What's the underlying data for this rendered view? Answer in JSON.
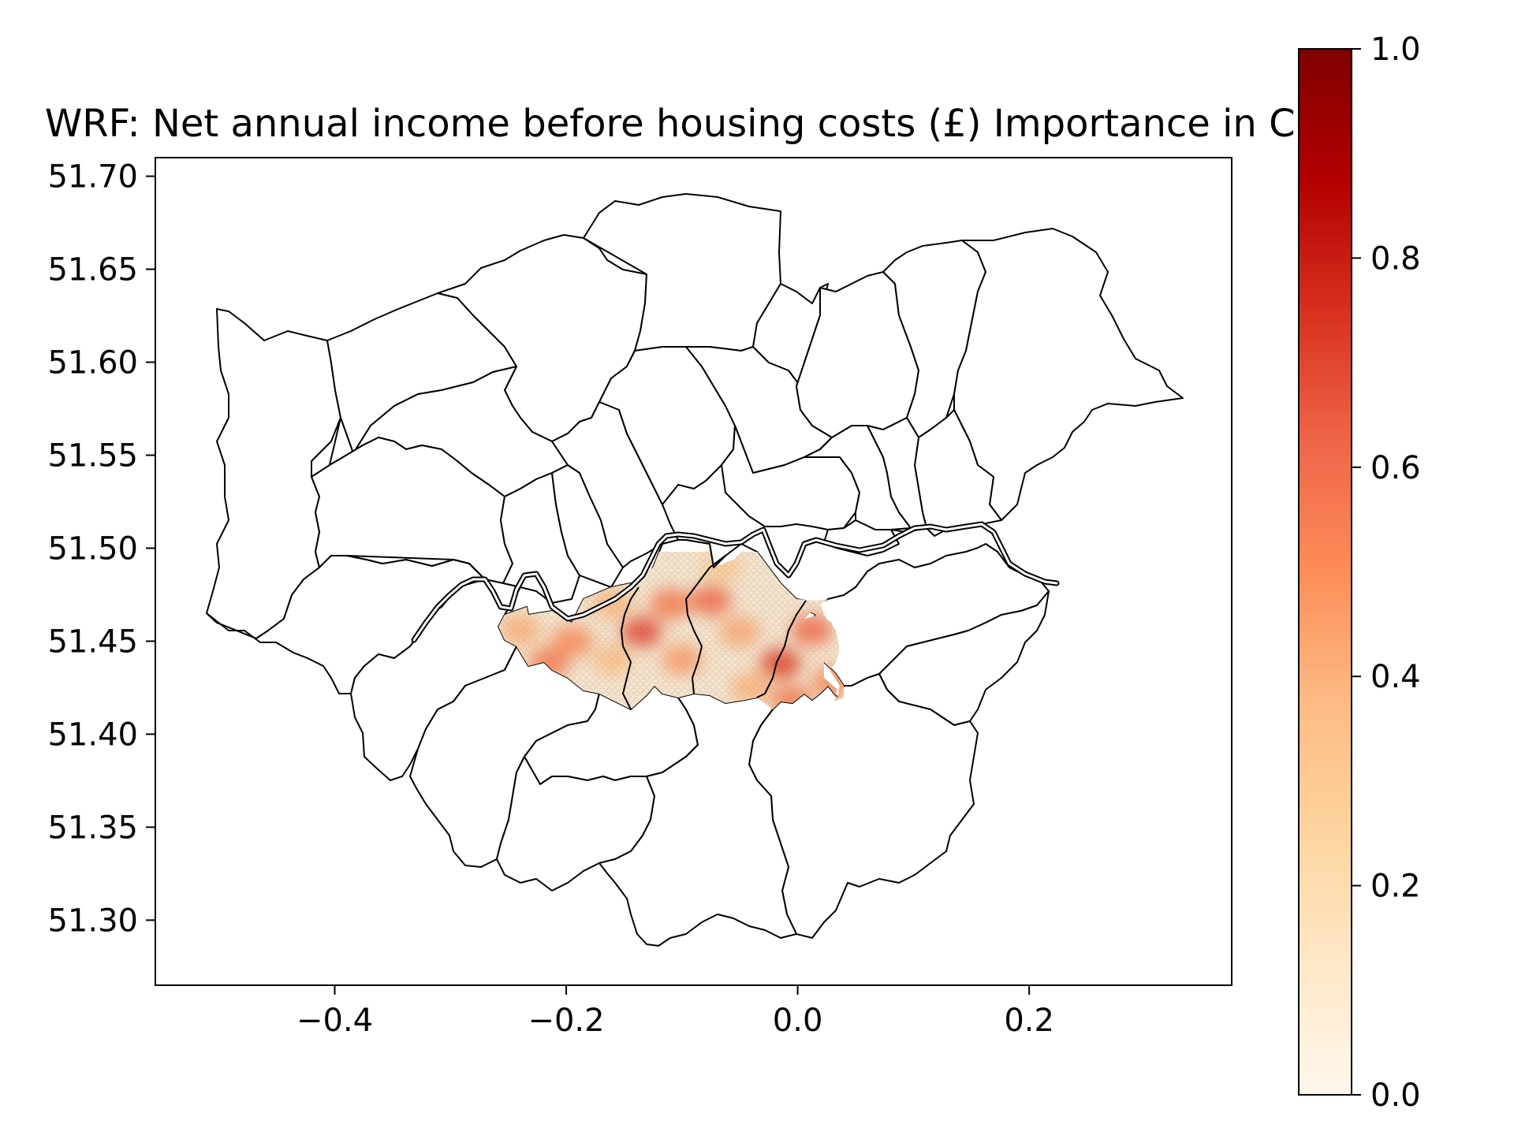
{
  "title": "WRF: Net annual income before housing costs (£) Importance in  City",
  "chart_data": {
    "type": "heatmap",
    "title": "WRF: Net annual income before housing costs (£) Importance in  City",
    "xlabel": "",
    "ylabel": "",
    "xlim": [
      -0.555,
      0.375
    ],
    "ylim": [
      51.265,
      51.71
    ],
    "x_ticks": [
      -0.4,
      -0.2,
      0.0,
      0.2
    ],
    "x_tick_labels": [
      "−0.4",
      "−0.2",
      "0.0",
      "0.2"
    ],
    "y_ticks": [
      51.3,
      51.35,
      51.4,
      51.45,
      51.5,
      51.55,
      51.6,
      51.65,
      51.7
    ],
    "y_tick_labels": [
      "51.30",
      "51.35",
      "51.40",
      "51.45",
      "51.50",
      "51.55",
      "51.60",
      "51.65",
      "51.70"
    ],
    "colorbar": {
      "cmap": "OrRd",
      "range": [
        0.0,
        1.0
      ],
      "ticks": [
        0.0,
        0.2,
        0.4,
        0.6,
        0.8,
        1.0
      ],
      "tick_labels": [
        "0.0",
        "0.2",
        "0.4",
        "0.6",
        "0.8",
        "1.0"
      ]
    },
    "grid": false,
    "hotspots": [
      {
        "lon": -0.135,
        "lat": 51.455,
        "value": 0.68
      },
      {
        "lon": -0.11,
        "lat": 51.47,
        "value": 0.55
      },
      {
        "lon": -0.075,
        "lat": 51.472,
        "value": 0.6
      },
      {
        "lon": -0.05,
        "lat": 51.455,
        "value": 0.42
      },
      {
        "lon": -0.015,
        "lat": 51.438,
        "value": 0.7
      },
      {
        "lon": 0.012,
        "lat": 51.456,
        "value": 0.6
      },
      {
        "lon": -0.195,
        "lat": 51.45,
        "value": 0.5
      },
      {
        "lon": -0.215,
        "lat": 51.438,
        "value": 0.55
      },
      {
        "lon": -0.24,
        "lat": 51.456,
        "value": 0.4
      },
      {
        "lon": -0.1,
        "lat": 51.44,
        "value": 0.45
      },
      {
        "lon": -0.04,
        "lat": 51.425,
        "value": 0.4
      },
      {
        "lon": 0.03,
        "lat": 51.428,
        "value": 0.5
      },
      {
        "lon": -0.16,
        "lat": 51.47,
        "value": 0.38
      },
      {
        "lon": -0.005,
        "lat": 51.418,
        "value": 0.55
      },
      {
        "lon": -0.16,
        "lat": 51.44,
        "value": 0.35
      },
      {
        "lon": -0.065,
        "lat": 51.49,
        "value": 0.3
      }
    ],
    "background_value": 0.08
  },
  "colors": {
    "boundary": "#000000",
    "cmap_low": "#fff7ec",
    "cmap_high": "#7f0000"
  }
}
